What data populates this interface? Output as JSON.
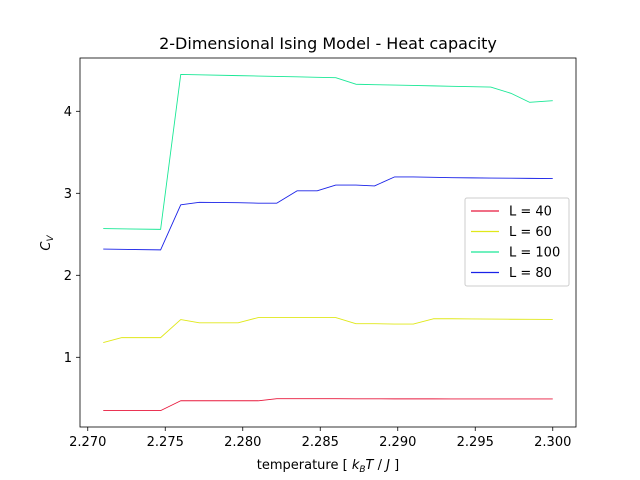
{
  "chart_data": {
    "type": "line",
    "title": "2-Dimensional Ising Model - Heat capacity",
    "xlabel": "temperature [ kBT / J ]",
    "ylabel": "CV",
    "xlim": [
      2.2695,
      2.3015
    ],
    "ylim": [
      0.15,
      4.65
    ],
    "xticks": [
      2.27,
      2.275,
      2.28,
      2.285,
      2.29,
      2.295,
      2.3
    ],
    "xtick_labels": [
      "2.270",
      "2.275",
      "2.280",
      "2.285",
      "2.290",
      "2.295",
      "2.300"
    ],
    "yticks": [
      1,
      2,
      3,
      4
    ],
    "ytick_labels": [
      "1",
      "2",
      "3",
      "4"
    ],
    "grid": false,
    "legend_position": "center-right",
    "series": [
      {
        "name": "L = 40",
        "color": "#e8183c",
        "x": [
          2.271,
          2.2747,
          2.276,
          2.2772,
          2.2797,
          2.281,
          2.2822,
          2.2835,
          2.2848,
          2.286,
          2.2873,
          2.2885,
          2.2898,
          2.291,
          2.2923,
          2.2935,
          2.2948,
          2.296,
          2.2973,
          2.2985,
          2.3
        ],
        "y": [
          0.35,
          0.35,
          0.47,
          0.47,
          0.47,
          0.47,
          0.495,
          0.495,
          0.495,
          0.495,
          0.494,
          0.494,
          0.493,
          0.493,
          0.493,
          0.492,
          0.492,
          0.492,
          0.492,
          0.492,
          0.492
        ]
      },
      {
        "name": "L = 60",
        "color": "#e0e81a",
        "x": [
          2.271,
          2.2722,
          2.2747,
          2.276,
          2.2772,
          2.2797,
          2.281,
          2.2822,
          2.2835,
          2.2848,
          2.286,
          2.2873,
          2.2885,
          2.2898,
          2.291,
          2.2923,
          2.2935,
          2.2948,
          2.296,
          2.2973,
          2.2985,
          2.3
        ],
        "y": [
          1.18,
          1.24,
          1.24,
          1.46,
          1.42,
          1.42,
          1.485,
          1.485,
          1.485,
          1.485,
          1.485,
          1.41,
          1.41,
          1.405,
          1.405,
          1.47,
          1.47,
          1.468,
          1.466,
          1.464,
          1.463,
          1.462
        ]
      },
      {
        "name": "L = 100",
        "color": "#1ae896",
        "x": [
          2.271,
          2.2747,
          2.276,
          2.2772,
          2.2797,
          2.281,
          2.2822,
          2.2835,
          2.2848,
          2.286,
          2.2873,
          2.2885,
          2.2898,
          2.291,
          2.2923,
          2.2935,
          2.2948,
          2.296,
          2.2973,
          2.2985,
          2.3
        ],
        "y": [
          2.57,
          2.56,
          4.45,
          4.445,
          4.435,
          4.43,
          4.425,
          4.42,
          4.415,
          4.41,
          4.33,
          4.325,
          4.32,
          4.315,
          4.31,
          4.305,
          4.3,
          4.295,
          4.22,
          4.11,
          4.13
        ]
      },
      {
        "name": "L = 80",
        "color": "#1a22e8",
        "x": [
          2.271,
          2.2747,
          2.276,
          2.2772,
          2.2797,
          2.281,
          2.2822,
          2.2835,
          2.2848,
          2.286,
          2.2873,
          2.2885,
          2.2898,
          2.291,
          2.2923,
          2.2935,
          2.2948,
          2.296,
          2.2973,
          2.2985,
          2.3
        ],
        "y": [
          2.32,
          2.31,
          2.86,
          2.89,
          2.885,
          2.88,
          2.88,
          3.03,
          3.03,
          3.1,
          3.1,
          3.09,
          3.2,
          3.2,
          3.195,
          3.19,
          3.188,
          3.186,
          3.184,
          3.182,
          3.18
        ]
      }
    ]
  }
}
